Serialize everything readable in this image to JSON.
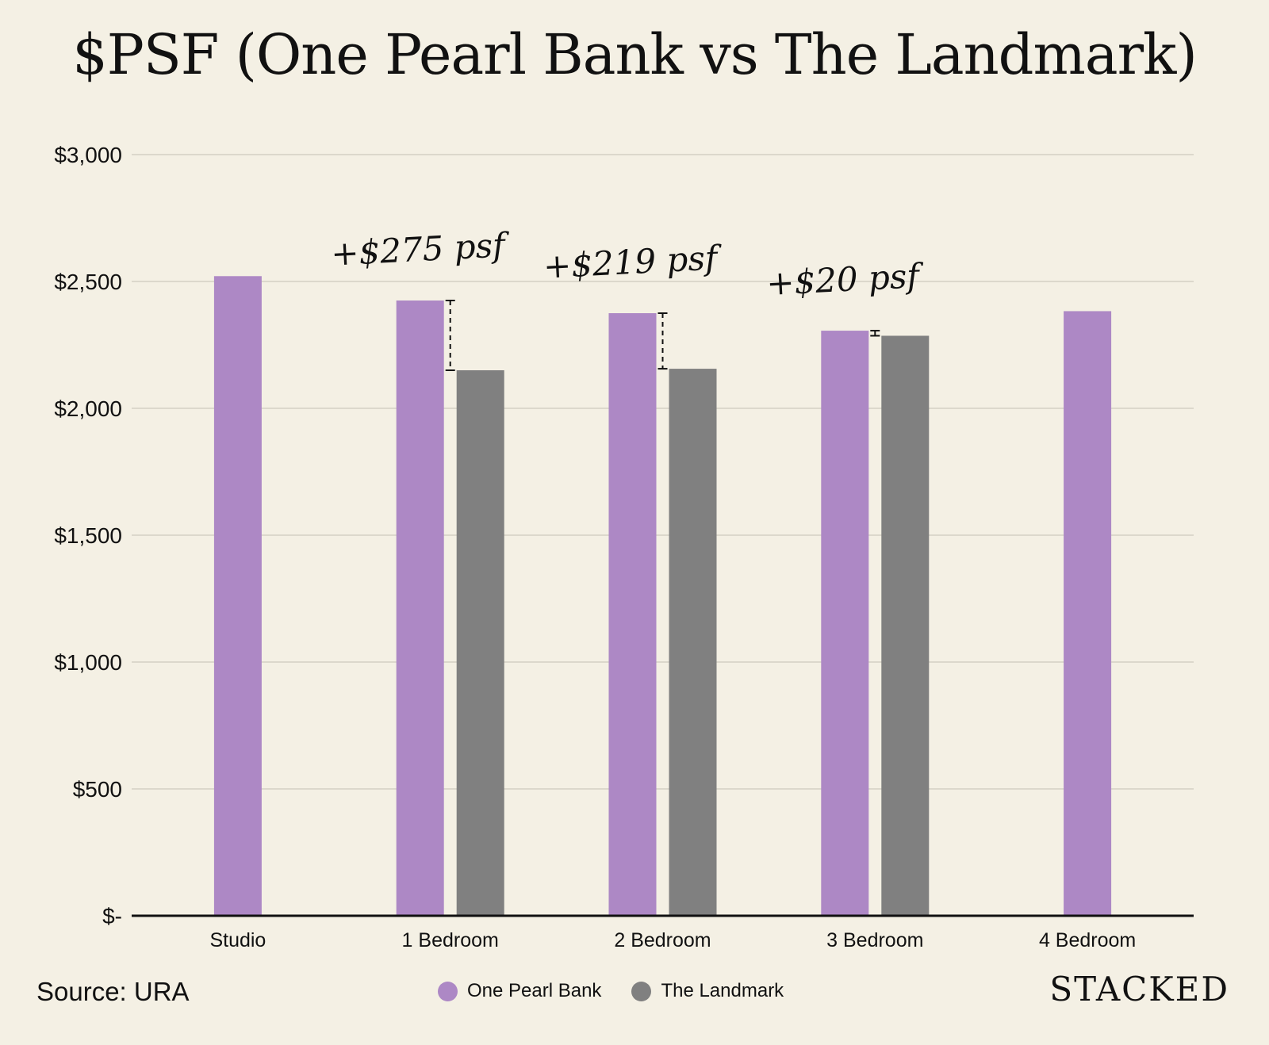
{
  "chart_data": {
    "type": "bar",
    "title": "$PSF (One Pearl Bank vs The Landmark)",
    "categories": [
      "Studio",
      "1 Bedroom",
      "2 Bedroom",
      "3 Bedroom",
      "4 Bedroom"
    ],
    "series": [
      {
        "name": "One Pearl Bank",
        "color": "#ad88c5",
        "values": [
          2521,
          2425,
          2375,
          2306,
          2383
        ]
      },
      {
        "name": "The Landmark",
        "color": "#808080",
        "values": [
          null,
          2150,
          2156,
          2286,
          null
        ]
      }
    ],
    "ylim": [
      0,
      3000
    ],
    "yticks": [
      0,
      500,
      1000,
      1500,
      2000,
      2500,
      3000
    ],
    "ytick_labels": [
      "$-",
      "$500",
      "$1,000",
      "$1,500",
      "$2,000",
      "$2,500",
      "$3,000"
    ],
    "grid": true,
    "legend_position": "bottom-center",
    "annotations": [
      {
        "category": "1 Bedroom",
        "text": "+$275 psf"
      },
      {
        "category": "2 Bedroom",
        "text": "+$219 psf"
      },
      {
        "category": "3 Bedroom",
        "text": "+$20 psf"
      }
    ]
  },
  "footer": {
    "source": "Source: URA",
    "brand": "STACKED"
  }
}
